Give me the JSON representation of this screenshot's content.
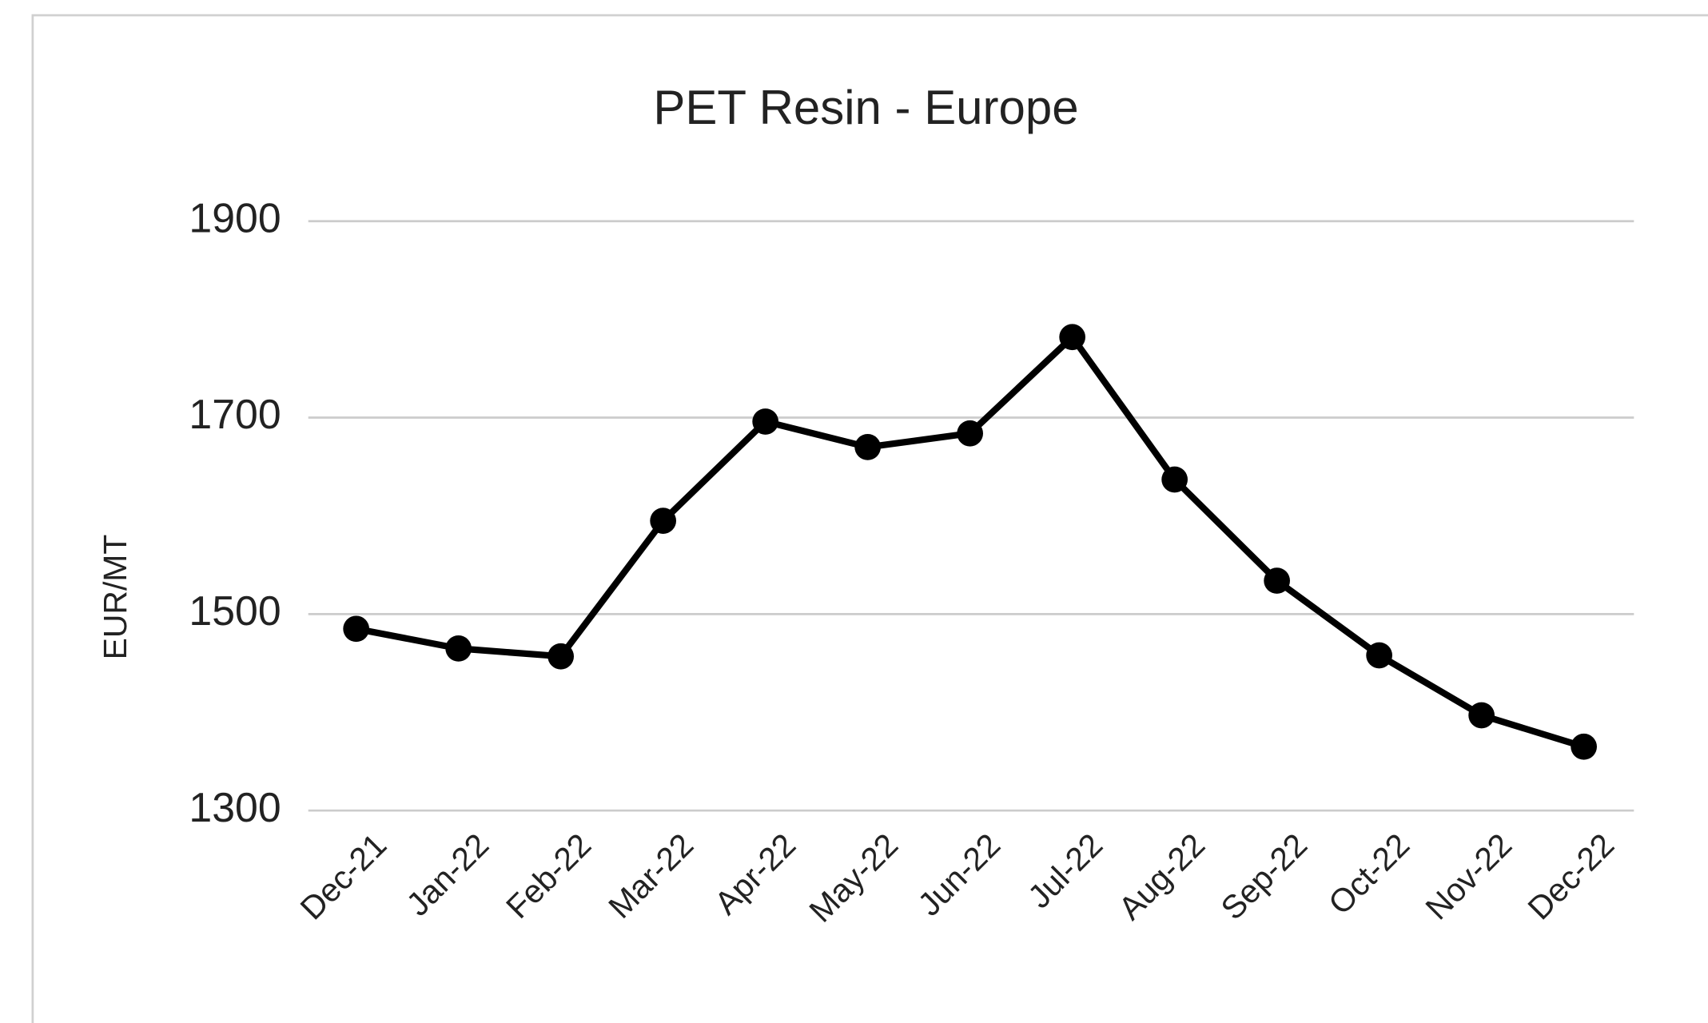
{
  "chart_data": {
    "type": "line",
    "title": "PET Resin - Europe",
    "y_label": "EUR/MT",
    "categories": [
      "Dec-21",
      "Jan-22",
      "Feb-22",
      "Mar-22",
      "Apr-22",
      "May-22",
      "Jun-22",
      "Jul-22",
      "Aug-22",
      "Sep-22",
      "Oct-22",
      "Nov-22",
      "Dec-22"
    ],
    "series": [
      {
        "name": "PET Resin - Europe",
        "color": "#000000",
        "values": [
          1485,
          1465,
          1457,
          1595,
          1696,
          1670,
          1684,
          1782,
          1637,
          1534,
          1458,
          1397,
          1365
        ]
      }
    ],
    "ylim": [
      1300,
      1900
    ],
    "yticks": [
      1300,
      1500,
      1700,
      1900
    ],
    "grid": true
  }
}
